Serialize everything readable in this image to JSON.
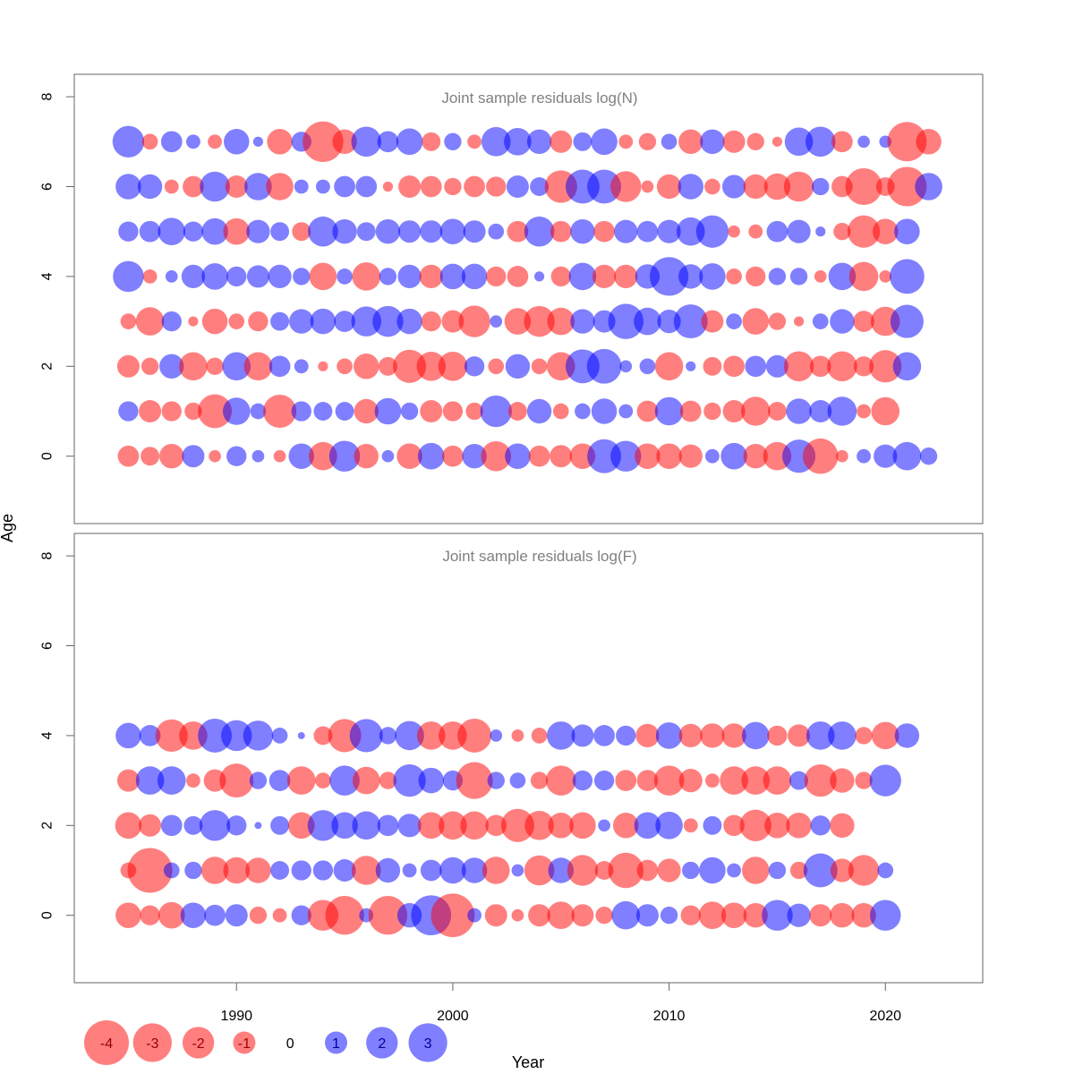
{
  "chart_data": {
    "type": "scatter",
    "xlabel": "Year",
    "ylabel": "Age",
    "x_ticks": [
      1990,
      2000,
      2010,
      2020
    ],
    "x_ticklabels": [
      "1990",
      "2000",
      "2010",
      "2020"
    ],
    "xlim": [
      1982.5,
      2024.5
    ],
    "colors": {
      "positive": "#0000ff",
      "negative": "#ff0000",
      "frame": "#666666",
      "title": "#808080"
    },
    "legend": {
      "placement": "bottom-left",
      "values": [
        -4,
        -3,
        -2,
        -1,
        0,
        1,
        2,
        3
      ],
      "labels": [
        "-4",
        "-3",
        "-2",
        "-1",
        "0",
        "1",
        "2",
        "3"
      ]
    },
    "panels": [
      {
        "title": "Joint sample residuals log(N)",
        "ylim": [
          -1.5,
          8.5
        ],
        "y_ticks": [
          0,
          2,
          4,
          6,
          8
        ],
        "y_ticklabels": [
          "0",
          "2",
          "4",
          "6",
          "8"
        ],
        "start_year": 1985,
        "ages": [
          0,
          1,
          2,
          3,
          4,
          5,
          6,
          7
        ],
        "residuals": [
          [
            -0.9,
            -0.7,
            -1.2,
            1.0,
            -0.3,
            0.8,
            0.3,
            -0.3,
            1.3,
            -1.6,
            1.9,
            -1.2,
            0.3,
            -1.3,
            1.4,
            -0.9,
            1.2,
            -1.8,
            1.3,
            -0.9,
            -1.0,
            -1.3,
            2.3,
            1.9,
            -1.3,
            -1.3,
            -1.1,
            0.4,
            1.4,
            -1.2,
            -1.6,
            2.2,
            -2.5,
            -0.3,
            0.4,
            1.1,
            1.6,
            0.6
          ],
          [
            0.8,
            -1.0,
            -0.8,
            -0.6,
            -2.3,
            1.5,
            0.5,
            -2.2,
            0.8,
            0.7,
            0.7,
            -1.2,
            1.4,
            0.6,
            -1.0,
            -0.8,
            -0.6,
            2.0,
            -0.7,
            1.2,
            -0.5,
            0.5,
            1.3,
            0.4,
            -0.9,
            1.6,
            -0.9,
            -0.6,
            -1.0,
            -1.7,
            -0.7,
            1.3,
            1.0,
            1.7,
            -0.4,
            -1.6
          ],
          [
            -1.0,
            -0.6,
            1.2,
            -1.6,
            -0.6,
            1.6,
            -1.6,
            0.9,
            0.4,
            -0.2,
            -0.5,
            -1.3,
            -0.7,
            -2.2,
            -1.7,
            -1.7,
            0.8,
            -0.5,
            1.2,
            -0.5,
            -1.6,
            2.3,
            2.4,
            0.3,
            0.5,
            -1.6,
            0.2,
            -0.7,
            -0.9,
            0.9,
            1.0,
            -1.8,
            -0.9,
            -1.8,
            -0.8,
            -2.1,
            1.6
          ],
          [
            -0.5,
            -1.6,
            0.8,
            -0.2,
            -1.3,
            -0.5,
            -0.8,
            0.7,
            1.2,
            1.3,
            0.9,
            1.8,
            1.9,
            1.3,
            -0.8,
            -1.0,
            -2.0,
            0.3,
            -1.4,
            -1.9,
            -1.5,
            1.2,
            1.0,
            2.5,
            1.5,
            1.1,
            2.3,
            -1.0,
            0.5,
            -1.4,
            -0.6,
            -0.2,
            0.5,
            1.2,
            -0.9,
            -1.7,
            2.2
          ],
          [
            1.9,
            -0.4,
            0.3,
            1.1,
            1.4,
            0.8,
            1.0,
            1.1,
            0.6,
            -1.5,
            0.5,
            -1.6,
            0.6,
            1.1,
            -1.1,
            1.3,
            1.3,
            -0.8,
            -0.9,
            0.2,
            -0.8,
            1.5,
            -1.1,
            -1.1,
            1.2,
            3.0,
            1.2,
            1.4,
            -0.5,
            -0.8,
            0.6,
            0.6,
            -0.3,
            1.5,
            -1.7,
            -0.3,
            2.4
          ],
          [
            0.8,
            0.9,
            1.5,
            0.8,
            1.4,
            -1.4,
            1.1,
            0.7,
            -0.7,
            1.8,
            1.2,
            0.7,
            1.2,
            1.0,
            1.0,
            1.3,
            1.0,
            0.5,
            -0.9,
            1.8,
            -0.9,
            1.2,
            -0.9,
            1.1,
            0.9,
            1.1,
            1.6,
            2.1,
            -0.3,
            -0.4,
            0.9,
            1.1,
            0.2,
            -0.6,
            -2.1,
            -1.3,
            1.3
          ],
          [
            1.3,
            1.2,
            -0.4,
            -0.9,
            1.8,
            -1.0,
            1.5,
            -1.5,
            0.4,
            0.4,
            0.9,
            0.9,
            -0.2,
            -1.0,
            -0.9,
            -0.6,
            -0.9,
            -0.8,
            1.0,
            0.7,
            -2.1,
            2.3,
            2.3,
            -1.9,
            -0.3,
            -1.2,
            1.3,
            -0.5,
            1.1,
            -1.2,
            -1.4,
            -1.8,
            0.6,
            -0.9,
            -2.7,
            -0.7,
            -3.1,
            1.5
          ],
          [
            2.0,
            -0.5,
            0.9,
            0.4,
            -0.4,
            1.3,
            0.2,
            -1.3,
            0.8,
            -3.3,
            -1.2,
            1.8,
            0.9,
            1.4,
            -0.7,
            0.6,
            -0.4,
            1.7,
            1.5,
            1.2,
            -1.0,
            0.7,
            1.4,
            -0.4,
            -0.6,
            0.5,
            -1.2,
            1.2,
            -1.0,
            -0.6,
            -0.2,
            1.6,
            1.8,
            -0.9,
            0.3,
            0.3,
            -3.1,
            -1.3
          ]
        ]
      },
      {
        "title": "Joint sample residuals log(F)",
        "ylim": [
          -1.5,
          8.5
        ],
        "y_ticks": [
          0,
          2,
          4,
          6,
          8
        ],
        "y_ticklabels": [
          "0",
          "2",
          "4",
          "6",
          "8"
        ],
        "start_year": 1985,
        "ages": [
          0,
          1,
          2,
          3,
          4
        ],
        "residuals": [
          [
            -1.3,
            -0.8,
            -1.4,
            1.3,
            0.9,
            1.0,
            -0.6,
            -0.4,
            0.8,
            -1.9,
            -3.0,
            0.4,
            -3.0,
            1.2,
            3.2,
            -3.8,
            0.4,
            -1.0,
            -0.3,
            -1.0,
            -1.5,
            -1.0,
            -0.6,
            1.6,
            1.0,
            0.6,
            -0.8,
            -1.5,
            -1.3,
            -1.2,
            1.9,
            1.1,
            -1.0,
            -1.2,
            -1.2,
            1.9
          ],
          [
            -0.5,
            -4.0,
            0.5,
            0.6,
            -1.5,
            -1.4,
            -1.3,
            0.7,
            0.8,
            0.8,
            1.0,
            -1.7,
            1.2,
            0.4,
            0.9,
            1.4,
            1.3,
            -1.5,
            0.3,
            -1.8,
            1.3,
            -1.9,
            -0.7,
            -2.5,
            -0.9,
            -1.1,
            0.6,
            1.4,
            0.4,
            -1.5,
            0.6,
            -0.6,
            2.3,
            -1.1,
            -1.9,
            0.5
          ],
          [
            -1.4,
            -1.0,
            0.9,
            0.7,
            1.9,
            0.8,
            0.1,
            0.7,
            -1.4,
            1.9,
            1.4,
            1.6,
            0.9,
            1.1,
            -1.4,
            -1.6,
            -1.6,
            -0.9,
            -2.2,
            -1.7,
            -1.3,
            -1.4,
            0.3,
            -1.3,
            1.4,
            1.5,
            -0.4,
            0.7,
            -0.9,
            -2.0,
            -1.3,
            -1.3,
            0.8,
            -1.2
          ],
          [
            -1.0,
            1.6,
            1.6,
            -0.4,
            -1.0,
            -2.3,
            0.6,
            0.9,
            -1.6,
            -0.5,
            1.8,
            -1.5,
            -0.6,
            2.1,
            1.3,
            0.8,
            -2.7,
            0.6,
            0.5,
            -0.6,
            -1.8,
            0.8,
            0.8,
            -0.9,
            -0.9,
            -1.8,
            -1.1,
            -0.4,
            -1.6,
            -1.6,
            -1.6,
            0.7,
            -2.1,
            -1.2,
            -0.6,
            2.0
          ],
          [
            1.3,
            0.9,
            -2.1,
            -1.6,
            2.3,
            1.9,
            1.8,
            0.5,
            0.1,
            -0.7,
            -2.2,
            2.2,
            0.6,
            1.7,
            -1.6,
            -1.6,
            -2.3,
            0.3,
            -0.3,
            -0.5,
            1.6,
            1.0,
            0.9,
            0.8,
            -1.1,
            1.4,
            -1.1,
            -1.2,
            -1.2,
            1.5,
            -0.8,
            -1.0,
            1.6,
            1.6,
            -0.6,
            -1.5,
            1.2
          ]
        ]
      }
    ]
  }
}
